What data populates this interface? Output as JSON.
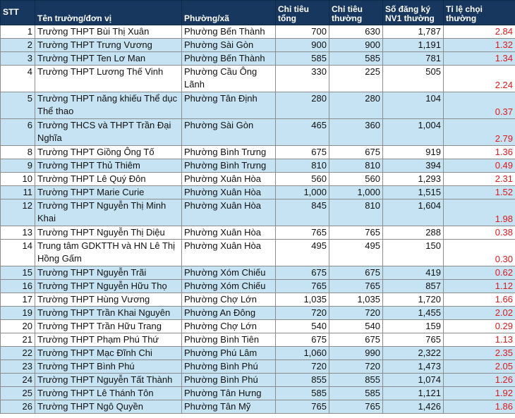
{
  "headers": {
    "stt": "STT",
    "unit": "Tên trường/đơn vị",
    "ward": "Phường/xã",
    "quota_total": [
      "Chỉ tiêu",
      "tổng"
    ],
    "quota_regular": [
      "Chỉ tiêu",
      "thường"
    ],
    "registrations": [
      "Số đăng ký",
      "NV1 thường"
    ],
    "ratio": "Tỉ lệ chọi thường"
  },
  "rows": [
    {
      "stt": "1",
      "unit": "Trường THPT Bùi Thị Xuân",
      "ward": "Phường Bến Thành",
      "total": "700",
      "regular": "630",
      "nv1": "1,787",
      "ratio": "2.84"
    },
    {
      "stt": "2",
      "unit": "Trường THPT Trưng Vương",
      "ward": "Phường Sài Gòn",
      "total": "900",
      "regular": "900",
      "nv1": "1,191",
      "ratio": "1.32"
    },
    {
      "stt": "3",
      "unit": "Trường THPT Ten Lơ Man",
      "ward": "Phường Bến Thành",
      "total": "585",
      "regular": "585",
      "nv1": "781",
      "ratio": "1.34"
    },
    {
      "stt": "4",
      "unit": "Trường THPT Lương Thế Vinh",
      "ward": "Phường Cầu Ông Lãnh",
      "total": "330",
      "regular": "225",
      "nv1": "505",
      "ratio": "2.24"
    },
    {
      "stt": "5",
      "unit": "Trường THPT năng khiếu Thể dục Thể thao",
      "ward": "Phường Tân Định",
      "total": "280",
      "regular": "280",
      "nv1": "104",
      "ratio": "0.37"
    },
    {
      "stt": "6",
      "unit": "Trường THCS và THPT Trần Đại Nghĩa",
      "ward": "Phường Sài Gòn",
      "total": "465",
      "regular": "360",
      "nv1": "1,004",
      "ratio": "2.79"
    },
    {
      "stt": "8",
      "unit": "Trường THPT Giồng Ông Tố",
      "ward": "Phường Bình Trưng",
      "total": "675",
      "regular": "675",
      "nv1": "919",
      "ratio": "1.36"
    },
    {
      "stt": "9",
      "unit": "Trường THPT Thủ Thiêm",
      "ward": "Phường Bình Trưng",
      "total": "810",
      "regular": "810",
      "nv1": "394",
      "ratio": "0.49"
    },
    {
      "stt": "10",
      "unit": "Trường THPT Lê Quý Đôn",
      "ward": "Phường Xuân Hòa",
      "total": "560",
      "regular": "560",
      "nv1": "1,293",
      "ratio": "2.31"
    },
    {
      "stt": "11",
      "unit": "Trường THPT Marie Curie",
      "ward": "Phường Xuân Hòa",
      "total": "1,000",
      "regular": "1,000",
      "nv1": "1,515",
      "ratio": "1.52"
    },
    {
      "stt": "12",
      "unit": "Trường THPT Nguyễn Thị Minh Khai",
      "ward": "Phường Xuân Hòa",
      "total": "845",
      "regular": "810",
      "nv1": "1,604",
      "ratio": "1.98"
    },
    {
      "stt": "13",
      "unit": "Trường THPT Nguyễn Thị Diệu",
      "ward": "Phường Xuân Hòa",
      "total": "765",
      "regular": "765",
      "nv1": "288",
      "ratio": "0.38"
    },
    {
      "stt": "14",
      "unit": "Trung tâm GDKTTH và HN Lê Thị Hồng Gấm",
      "ward": "Phường Xuân Hòa",
      "total": "495",
      "regular": "495",
      "nv1": "150",
      "ratio": "0.30"
    },
    {
      "stt": "15",
      "unit": "Trường THPT Nguyễn Trãi",
      "ward": "Phường Xóm Chiếu",
      "total": "675",
      "regular": "675",
      "nv1": "419",
      "ratio": "0.62"
    },
    {
      "stt": "16",
      "unit": "Trường THPT Nguyễn Hữu Thọ",
      "ward": "Phường Xóm Chiếu",
      "total": "765",
      "regular": "765",
      "nv1": "857",
      "ratio": "1.12"
    },
    {
      "stt": "17",
      "unit": "Trường THPT Hùng Vương",
      "ward": "Phường Chợ Lớn",
      "total": "1,035",
      "regular": "1,035",
      "nv1": "1,720",
      "ratio": "1.66"
    },
    {
      "stt": "19",
      "unit": "Trường THPT Trần Khai Nguyên",
      "ward": "Phường An Đông",
      "total": "720",
      "regular": "720",
      "nv1": "1,455",
      "ratio": "2.02"
    },
    {
      "stt": "20",
      "unit": "Trường THPT Trần Hữu Trang",
      "ward": "Phường Chợ Lớn",
      "total": "540",
      "regular": "540",
      "nv1": "159",
      "ratio": "0.29"
    },
    {
      "stt": "21",
      "unit": "Trường THPT Phạm Phú Thứ",
      "ward": "Phường Bình Tiên",
      "total": "675",
      "regular": "675",
      "nv1": "765",
      "ratio": "1.13"
    },
    {
      "stt": "22",
      "unit": "Trường THPT Mạc Đĩnh Chi",
      "ward": "Phường Phú Lâm",
      "total": "1,060",
      "regular": "990",
      "nv1": "2,322",
      "ratio": "2.35"
    },
    {
      "stt": "23",
      "unit": "Trường THPT Bình Phú",
      "ward": "Phường Bình Phú",
      "total": "720",
      "regular": "720",
      "nv1": "1,473",
      "ratio": "2.05"
    },
    {
      "stt": "24",
      "unit": "Trường THPT Nguyễn Tất Thành",
      "ward": "Phường Bình Phú",
      "total": "855",
      "regular": "855",
      "nv1": "1,074",
      "ratio": "1.26"
    },
    {
      "stt": "25",
      "unit": "Trường THPT Lê Thánh Tôn",
      "ward": "Phường Tân Hưng",
      "total": "585",
      "regular": "585",
      "nv1": "1,121",
      "ratio": "1.92"
    },
    {
      "stt": "26",
      "unit": "Trường THPT Ngô Quyền",
      "ward": "Phường Tân Mỹ",
      "total": "765",
      "regular": "765",
      "nv1": "1,426",
      "ratio": "1.86"
    }
  ],
  "colors": {
    "header_bg": "#17375e",
    "row_shade": "#c5e3f3",
    "ratio_text": "#e0181b"
  }
}
